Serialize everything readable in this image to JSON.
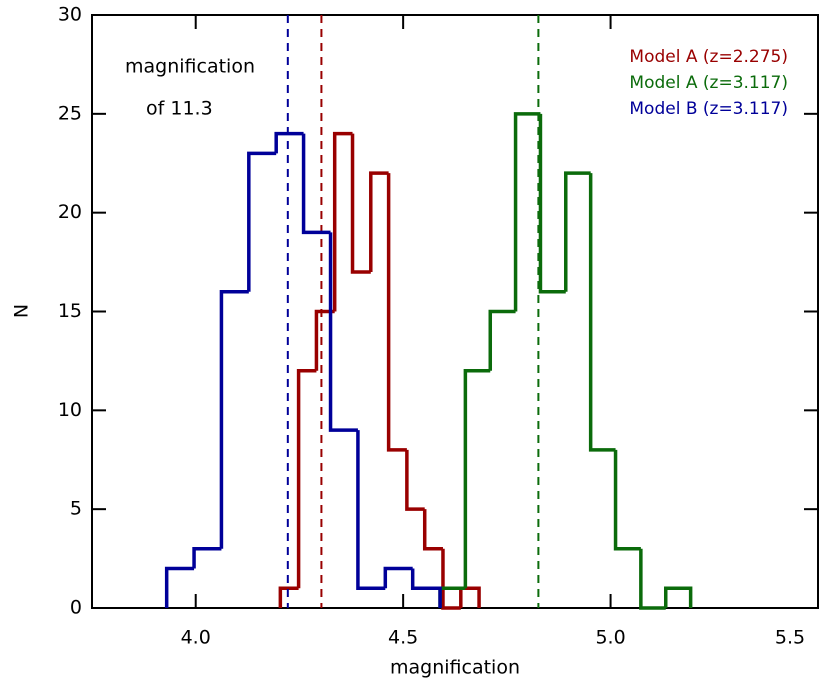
{
  "chart_data": {
    "type": "histogram",
    "xlabel": "magnification",
    "ylabel": "N",
    "annotations": [
      "magnification",
      "of 11.3"
    ],
    "xlim": [
      3.75,
      5.5
    ],
    "xticks": [
      {
        "value": 4.0,
        "label": "4.0"
      },
      {
        "value": 4.5,
        "label": "4.5"
      },
      {
        "value": 5.0,
        "label": "5.0"
      },
      {
        "value": 5.5,
        "label": "5.5"
      }
    ],
    "ylim": [
      0,
      30
    ],
    "yticks": [
      0,
      5,
      10,
      15,
      20,
      25,
      30
    ],
    "series": [
      {
        "name": "Model A (z=2.275)",
        "color": "#990000",
        "mean": 4.303,
        "bins": [
          4.204,
          4.248,
          4.291,
          4.335,
          4.378,
          4.422,
          4.465,
          4.509,
          4.552,
          4.596,
          4.639,
          4.683
        ],
        "values": [
          1,
          12,
          15,
          24,
          17,
          22,
          8,
          5,
          3,
          0,
          1
        ]
      },
      {
        "name": "Model A (z=3.117)",
        "color": "#0b6b0b",
        "mean": 4.826,
        "bins": [
          4.589,
          4.65,
          4.71,
          4.771,
          4.831,
          4.892,
          4.952,
          5.012,
          5.073,
          5.133,
          5.193
        ],
        "values": [
          1,
          12,
          15,
          25,
          16,
          22,
          8,
          3,
          0,
          1
        ]
      },
      {
        "name": "Model B (z=3.117)",
        "color": "#000099",
        "mean": 4.222,
        "bins": [
          3.93,
          3.996,
          4.062,
          4.128,
          4.194,
          4.26,
          4.325,
          4.391,
          4.457,
          4.523,
          4.589
        ],
        "values": [
          2,
          3,
          16,
          23,
          24,
          19,
          9,
          1,
          2,
          1
        ]
      }
    ]
  }
}
